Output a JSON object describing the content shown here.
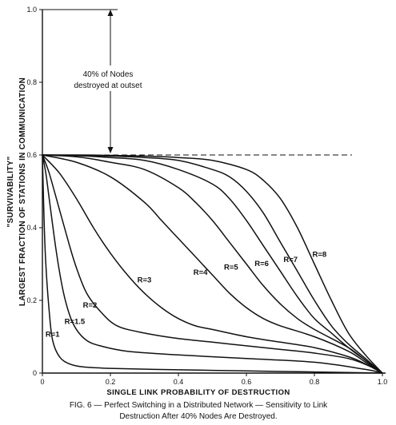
{
  "chart_data": {
    "type": "line",
    "caption_line1": "FIG. 6 — Perfect Switching in a Distributed Network — Sensitivity to Link",
    "caption_line2": "Destruction After 40% Nodes Are Destroyed.",
    "xlabel": "SINGLE LINK PROBABILITY OF DESTRUCTION",
    "ylabel_line1": "\"SURVIVABILITY\"",
    "ylabel_line2": "LARGEST FRACTION OF STATIONS IN COMMUNICATION",
    "xlim": [
      0,
      1.0
    ],
    "ylim": [
      0,
      1.0
    ],
    "x_ticks": [
      "0",
      "0.2",
      "0.4",
      "0.6",
      "0.8",
      "1.0"
    ],
    "y_ticks": [
      "0",
      "0.2",
      "0.4",
      "0.6",
      "0.8",
      "1.0"
    ],
    "annotation_line1": "40% of Nodes",
    "annotation_line2": "destroyed at outset",
    "reference_level": 0.6,
    "series": [
      {
        "name": "R=1",
        "x": [
          0,
          0.005,
          0.01,
          0.02,
          0.03,
          0.05,
          0.08,
          0.12,
          0.2,
          0.4,
          0.6,
          0.8,
          1.0
        ],
        "y": [
          0.6,
          0.42,
          0.3,
          0.17,
          0.09,
          0.045,
          0.025,
          0.017,
          0.013,
          0.009,
          0.006,
          0.003,
          0
        ]
      },
      {
        "name": "R=1.5",
        "x": [
          0,
          0.01,
          0.02,
          0.04,
          0.06,
          0.08,
          0.1,
          0.13,
          0.17,
          0.25,
          0.4,
          0.6,
          0.8,
          0.95,
          1.0
        ],
        "y": [
          0.6,
          0.55,
          0.48,
          0.34,
          0.23,
          0.16,
          0.12,
          0.09,
          0.075,
          0.06,
          0.05,
          0.04,
          0.03,
          0.01,
          0
        ]
      },
      {
        "name": "R=2",
        "x": [
          0,
          0.02,
          0.05,
          0.08,
          0.1,
          0.13,
          0.17,
          0.22,
          0.3,
          0.4,
          0.5,
          0.6,
          0.7,
          0.8,
          0.9,
          0.96,
          1.0
        ],
        "y": [
          0.6,
          0.55,
          0.45,
          0.35,
          0.29,
          0.22,
          0.17,
          0.13,
          0.11,
          0.095,
          0.085,
          0.075,
          0.065,
          0.055,
          0.04,
          0.02,
          0
        ]
      },
      {
        "name": "R=3",
        "x": [
          0,
          0.05,
          0.1,
          0.15,
          0.2,
          0.25,
          0.3,
          0.35,
          0.4,
          0.45,
          0.5,
          0.6,
          0.7,
          0.8,
          0.9,
          0.95,
          1.0
        ],
        "y": [
          0.6,
          0.55,
          0.48,
          0.4,
          0.33,
          0.27,
          0.22,
          0.18,
          0.15,
          0.13,
          0.12,
          0.1,
          0.085,
          0.07,
          0.045,
          0.025,
          0
        ]
      },
      {
        "name": "R=4",
        "x": [
          0,
          0.1,
          0.2,
          0.3,
          0.35,
          0.4,
          0.45,
          0.5,
          0.55,
          0.6,
          0.65,
          0.7,
          0.8,
          0.9,
          0.95,
          1.0
        ],
        "y": [
          0.6,
          0.58,
          0.54,
          0.47,
          0.42,
          0.37,
          0.32,
          0.27,
          0.22,
          0.18,
          0.15,
          0.13,
          0.1,
          0.06,
          0.03,
          0
        ]
      },
      {
        "name": "R=5",
        "x": [
          0,
          0.1,
          0.2,
          0.3,
          0.4,
          0.45,
          0.5,
          0.55,
          0.6,
          0.65,
          0.7,
          0.75,
          0.8,
          0.9,
          0.95,
          1.0
        ],
        "y": [
          0.6,
          0.595,
          0.58,
          0.56,
          0.51,
          0.47,
          0.42,
          0.36,
          0.3,
          0.24,
          0.19,
          0.15,
          0.12,
          0.07,
          0.035,
          0
        ]
      },
      {
        "name": "R=6",
        "x": [
          0,
          0.1,
          0.2,
          0.3,
          0.4,
          0.5,
          0.55,
          0.6,
          0.65,
          0.7,
          0.75,
          0.8,
          0.85,
          0.9,
          0.95,
          1.0
        ],
        "y": [
          0.6,
          0.598,
          0.593,
          0.585,
          0.56,
          0.52,
          0.48,
          0.42,
          0.35,
          0.28,
          0.21,
          0.15,
          0.11,
          0.07,
          0.035,
          0
        ]
      },
      {
        "name": "R=7",
        "x": [
          0,
          0.1,
          0.2,
          0.3,
          0.4,
          0.5,
          0.55,
          0.6,
          0.65,
          0.7,
          0.75,
          0.8,
          0.85,
          0.9,
          0.95,
          1.0
        ],
        "y": [
          0.6,
          0.599,
          0.597,
          0.593,
          0.585,
          0.56,
          0.54,
          0.5,
          0.44,
          0.36,
          0.28,
          0.2,
          0.13,
          0.08,
          0.04,
          0
        ]
      },
      {
        "name": "R=8",
        "x": [
          0,
          0.1,
          0.2,
          0.3,
          0.4,
          0.5,
          0.6,
          0.65,
          0.7,
          0.75,
          0.8,
          0.85,
          0.9,
          0.95,
          1.0
        ],
        "y": [
          0.6,
          0.6,
          0.599,
          0.597,
          0.593,
          0.585,
          0.56,
          0.53,
          0.48,
          0.4,
          0.3,
          0.2,
          0.11,
          0.05,
          0
        ]
      }
    ]
  }
}
